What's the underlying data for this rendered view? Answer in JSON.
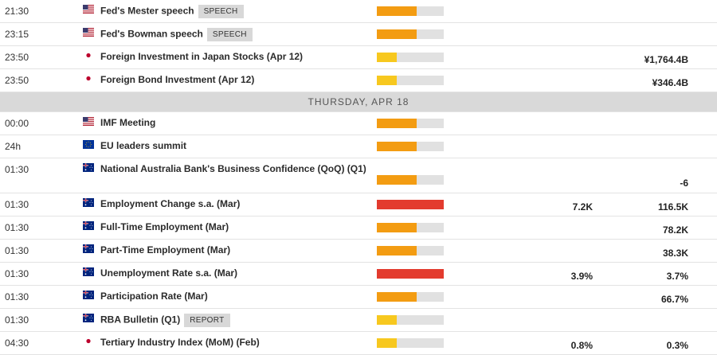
{
  "colors": {
    "low": "#f7c81f",
    "medium": "#f39c12",
    "high": "#e33b2e",
    "track": "#e1e1e1",
    "day_header_bg": "#d9d9d9"
  },
  "sections": [
    {
      "header": null,
      "events": [
        {
          "time": "21:30",
          "flag": "us-flag-icon",
          "name": "Fed's Mester speech",
          "tag": "SPEECH",
          "impact": "medium",
          "impact_level": 0.6,
          "forecast": "",
          "previous": ""
        },
        {
          "time": "23:15",
          "flag": "us-flag-icon",
          "name": "Fed's Bowman speech",
          "tag": "SPEECH",
          "impact": "medium",
          "impact_level": 0.6,
          "forecast": "",
          "previous": ""
        },
        {
          "time": "23:50",
          "flag": "jp-flag-icon",
          "name": "Foreign Investment in Japan Stocks (Apr 12)",
          "tag": "",
          "impact": "low",
          "impact_level": 0.3,
          "forecast": "",
          "previous": "¥1,764.4B"
        },
        {
          "time": "23:50",
          "flag": "jp-flag-icon",
          "name": "Foreign Bond Investment (Apr 12)",
          "tag": "",
          "impact": "low",
          "impact_level": 0.3,
          "forecast": "",
          "previous": "¥346.4B"
        }
      ]
    },
    {
      "header": "THURSDAY, APR 18",
      "events": [
        {
          "time": "00:00",
          "flag": "us-flag-icon",
          "name": "IMF Meeting",
          "tag": "",
          "impact": "medium",
          "impact_level": 0.6,
          "forecast": "",
          "previous": ""
        },
        {
          "time": "24h",
          "flag": "eu-flag-icon",
          "name": "EU leaders summit",
          "tag": "",
          "impact": "medium",
          "impact_level": 0.6,
          "forecast": "",
          "previous": ""
        },
        {
          "time": "01:30",
          "flag": "au-flag-icon",
          "name": "National Australia Bank's Business Confidence (QoQ) (Q1)",
          "tag": "",
          "impact": "medium",
          "impact_level": 0.6,
          "forecast": "",
          "previous": "-6",
          "tall": true
        },
        {
          "time": "01:30",
          "flag": "au-flag-icon",
          "name": "Employment Change s.a. (Mar)",
          "tag": "",
          "impact": "high",
          "impact_level": 1.0,
          "forecast": "7.2K",
          "previous": "116.5K"
        },
        {
          "time": "01:30",
          "flag": "au-flag-icon",
          "name": "Full-Time Employment (Mar)",
          "tag": "",
          "impact": "medium",
          "impact_level": 0.6,
          "forecast": "",
          "previous": "78.2K"
        },
        {
          "time": "01:30",
          "flag": "au-flag-icon",
          "name": "Part-Time Employment (Mar)",
          "tag": "",
          "impact": "medium",
          "impact_level": 0.6,
          "forecast": "",
          "previous": "38.3K"
        },
        {
          "time": "01:30",
          "flag": "au-flag-icon",
          "name": "Unemployment Rate s.a. (Mar)",
          "tag": "",
          "impact": "high",
          "impact_level": 1.0,
          "forecast": "3.9%",
          "previous": "3.7%"
        },
        {
          "time": "01:30",
          "flag": "au-flag-icon",
          "name": "Participation Rate (Mar)",
          "tag": "",
          "impact": "medium",
          "impact_level": 0.6,
          "forecast": "",
          "previous": "66.7%"
        },
        {
          "time": "01:30",
          "flag": "au-flag-icon",
          "name": "RBA Bulletin (Q1)",
          "tag": "REPORT",
          "impact": "low",
          "impact_level": 0.3,
          "forecast": "",
          "previous": ""
        },
        {
          "time": "04:30",
          "flag": "jp-flag-icon",
          "name": "Tertiary Industry Index (MoM) (Feb)",
          "tag": "",
          "impact": "low",
          "impact_level": 0.3,
          "forecast": "0.8%",
          "previous": "0.3%"
        }
      ]
    }
  ]
}
